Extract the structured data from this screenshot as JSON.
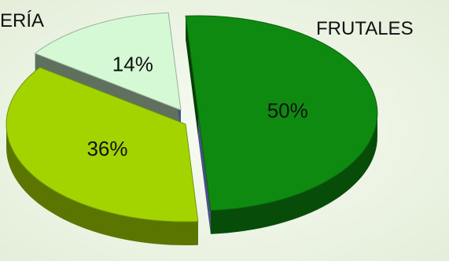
{
  "chart_data": {
    "type": "pie",
    "variant": "3d-exploded",
    "categories": [
      "FRUTALES",
      "",
      "ERÍA"
    ],
    "values": [
      50,
      36,
      14
    ],
    "value_labels": [
      "50%",
      "36%",
      "14%"
    ],
    "colors": [
      "#0f8a10",
      "#a3d400",
      "#d4f9d4"
    ]
  }
}
